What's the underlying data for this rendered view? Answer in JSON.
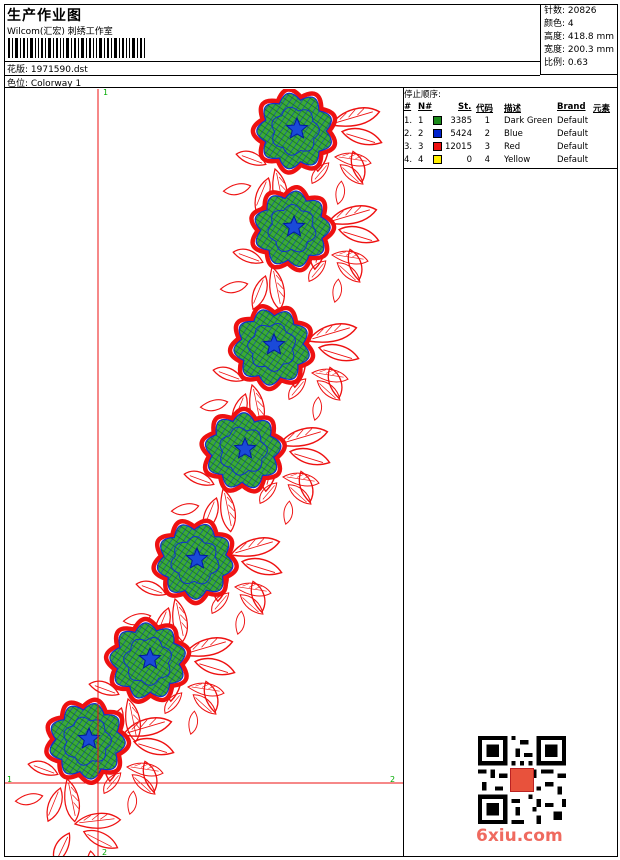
{
  "header": {
    "title": "生产作业图",
    "subtitle": "Wilcom(汇宏) 刺绣工作室",
    "design_label": "花版: 1971590.dst",
    "colorway_label": "色位:  Colorway 1"
  },
  "stats": {
    "stitches": "针数: 20826",
    "colors": "颜色: 4",
    "height": "高度: 418.8 mm",
    "width": "宽度: 200.3 mm",
    "scale": "比例: 0.63"
  },
  "stop_sequence": {
    "title": "停止顺序:",
    "headers": [
      "#",
      "N#",
      "St.",
      "代码",
      "描述",
      "Brand",
      "元素"
    ],
    "rows": [
      {
        "idx": "1.",
        "n": "1",
        "color": "#1a8a1a",
        "st": "3385",
        "code": "1",
        "desc": "Dark Green",
        "brand": "Default"
      },
      {
        "idx": "2.",
        "n": "2",
        "color": "#0022cc",
        "st": "5424",
        "code": "2",
        "desc": "Blue",
        "brand": "Default"
      },
      {
        "idx": "3.",
        "n": "3",
        "color": "#ee1111",
        "st": "12015",
        "code": "3",
        "desc": "Red",
        "brand": "Default"
      },
      {
        "idx": "4.",
        "n": "4",
        "color": "#ffee00",
        "st": "0",
        "code": "4",
        "desc": "Yellow",
        "brand": "Default"
      }
    ]
  },
  "axes": {
    "top_label": "1",
    "bottom_label": "2",
    "left_label": "1",
    "right_label": "2"
  },
  "watermark": "6xiu.com",
  "colors": {
    "red": "#ee1111",
    "green": "#22a022",
    "blue": "#1030d0",
    "axis_green": "#00aa00"
  }
}
